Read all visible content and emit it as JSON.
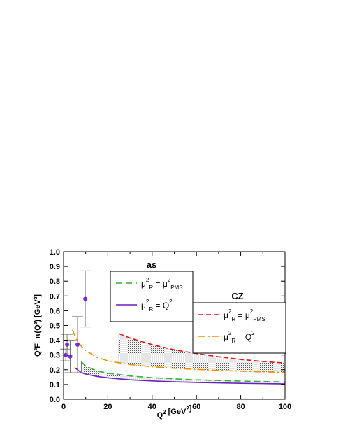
{
  "chart_data": {
    "type": "line",
    "xlabel": "Q",
    "xlabel_sup": "2",
    "xlabel_unit": " [GeV",
    "xlabel_unit_sup": "2",
    "xlabel_close": "]",
    "ylabel": "Q²F_π(Q²) [GeV²]",
    "xlim": [
      0,
      100
    ],
    "ylim": [
      0,
      1.0
    ],
    "x_ticks": [
      0,
      20,
      40,
      60,
      80,
      100
    ],
    "x_tick_labels": [
      "0",
      "20",
      "40",
      "60",
      "80",
      "100"
    ],
    "y_ticks": [
      0,
      0.1,
      0.2,
      0.3,
      0.4,
      0.5,
      0.6,
      0.7,
      0.8,
      0.9,
      1.0
    ],
    "y_tick_labels": [
      "0.0",
      "0.1",
      "0.2",
      "0.3",
      "0.4",
      "0.5",
      "0.6",
      "0.7",
      "0.8",
      "0.9",
      "1.0"
    ],
    "legends": [
      {
        "title": "as",
        "position": "top-center",
        "entries": [
          {
            "series": "as_pms",
            "text_base": "μ",
            "sup1": "2",
            "sub1": "R",
            "text_mid": "= μ",
            "sup2": "2",
            "sub2": "PMS",
            "tail": ""
          },
          {
            "series": "as_q2",
            "text_base": "μ",
            "sup1": "2",
            "sub1": "R",
            "text_mid": "= Q",
            "sup2": "2",
            "sub2": "",
            "tail": ""
          }
        ]
      },
      {
        "title": "CZ",
        "position": "center-right",
        "entries": [
          {
            "series": "cz_pms",
            "text_base": "μ",
            "sup1": "2",
            "sub1": "R",
            "text_mid": "= μ",
            "sup2": "2",
            "sub2": "PMS",
            "tail": ""
          },
          {
            "series": "cz_q2",
            "text_base": "μ",
            "sup1": "2",
            "sub1": "R",
            "text_mid": "= Q",
            "sup2": "2",
            "sub2": "",
            "tail": ""
          }
        ]
      }
    ],
    "series": [
      {
        "id": "as_q2",
        "color": "#6a1fbf",
        "dash": "solid",
        "x": [
          5,
          8,
          10,
          15,
          20,
          30,
          40,
          50,
          60,
          70,
          80,
          90,
          100
        ],
        "y": [
          0.215,
          0.18,
          0.17,
          0.155,
          0.145,
          0.132,
          0.124,
          0.118,
          0.114,
          0.111,
          0.108,
          0.106,
          0.104
        ]
      },
      {
        "id": "as_pms",
        "color": "#33b233",
        "dash": "long",
        "x": [
          8,
          10,
          15,
          20,
          30,
          40,
          50,
          60,
          70,
          80,
          90,
          100
        ],
        "y": [
          0.255,
          0.225,
          0.192,
          0.177,
          0.158,
          0.146,
          0.138,
          0.132,
          0.127,
          0.123,
          0.12,
          0.117
        ]
      },
      {
        "id": "cz_q2",
        "color": "#f08c00",
        "dash": "dashdot",
        "x": [
          4,
          6,
          8,
          10,
          15,
          20,
          30,
          40,
          50,
          60,
          70,
          80,
          90,
          100
        ],
        "y": [
          0.47,
          0.4,
          0.36,
          0.33,
          0.285,
          0.26,
          0.235,
          0.22,
          0.21,
          0.202,
          0.196,
          0.19,
          0.186,
          0.182
        ]
      },
      {
        "id": "cz_pms",
        "color": "#e01010",
        "dash": "short",
        "x": [
          25,
          30,
          40,
          50,
          60,
          70,
          80,
          90,
          100
        ],
        "y": [
          0.445,
          0.415,
          0.37,
          0.335,
          0.31,
          0.288,
          0.27,
          0.256,
          0.245
        ]
      }
    ],
    "bands": [
      {
        "between": [
          "as_q2",
          "as_pms"
        ],
        "from_x": 8
      },
      {
        "between": [
          "cz_q2",
          "cz_pms"
        ],
        "from_x": 25
      }
    ],
    "data_points": [
      {
        "x": 1.0,
        "y": 0.3,
        "err": 0.04
      },
      {
        "x": 1.6,
        "y": 0.37,
        "err": 0.07
      },
      {
        "x": 3.0,
        "y": 0.29,
        "err": 0.11
      },
      {
        "x": 6.3,
        "y": 0.37,
        "err": 0.19
      },
      {
        "x": 9.8,
        "y": 0.68,
        "err": 0.19
      }
    ],
    "point_color": "#7a2ad0"
  }
}
